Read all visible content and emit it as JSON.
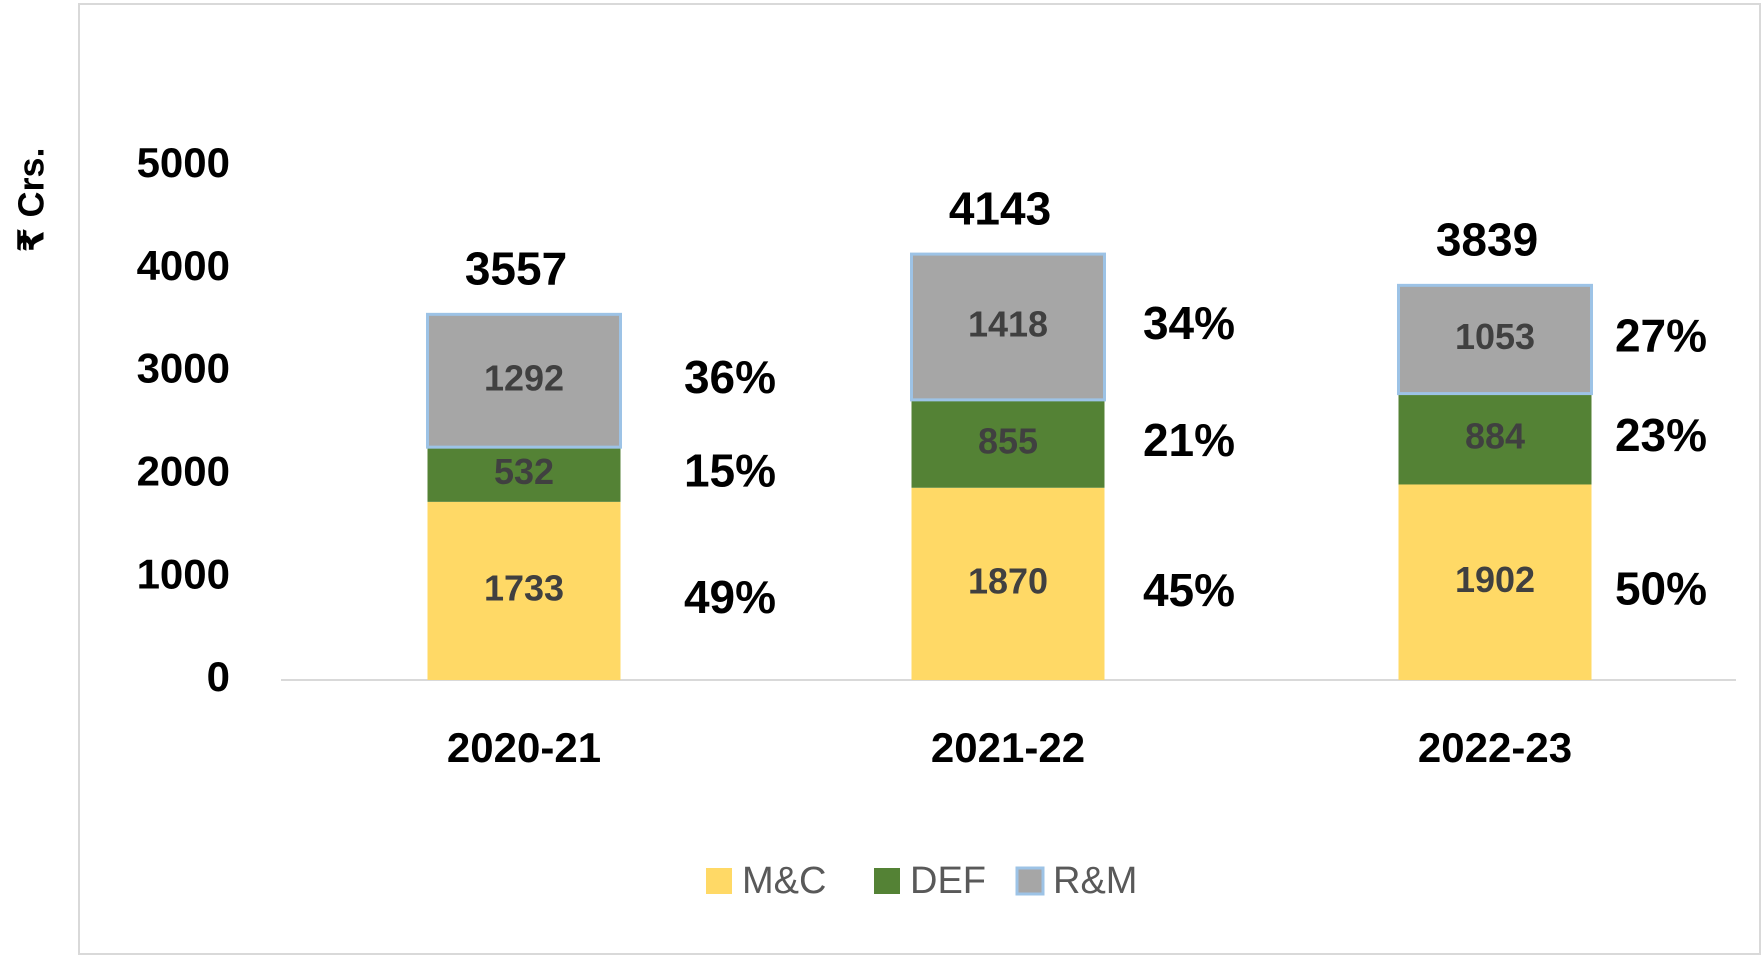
{
  "chart_data": {
    "type": "stacked_bar",
    "y_label": "₹ Crs.",
    "categories": [
      "2020-21",
      "2021-22",
      "2022-23"
    ],
    "series": [
      {
        "name": "M&C",
        "color": "#ffd966",
        "values": [
          1733,
          1870,
          1902
        ],
        "share_labels": [
          "49%",
          "45%",
          "50%"
        ]
      },
      {
        "name": "DEF",
        "color": "#548235",
        "values": [
          532,
          855,
          884
        ],
        "share_labels": [
          "15%",
          "21%",
          "23%"
        ]
      },
      {
        "name": "R&M",
        "color": "#a6a6a6",
        "border": "#9dc3e6",
        "values": [
          1292,
          1418,
          1053
        ],
        "share_labels": [
          "36%",
          "34%",
          "27%"
        ]
      }
    ],
    "totals": [
      3557,
      4143,
      3839
    ],
    "ylim": [
      0,
      5000
    ],
    "yticks": [
      0,
      1000,
      2000,
      3000,
      4000,
      5000
    ],
    "grid": false,
    "legend": "bottom"
  }
}
